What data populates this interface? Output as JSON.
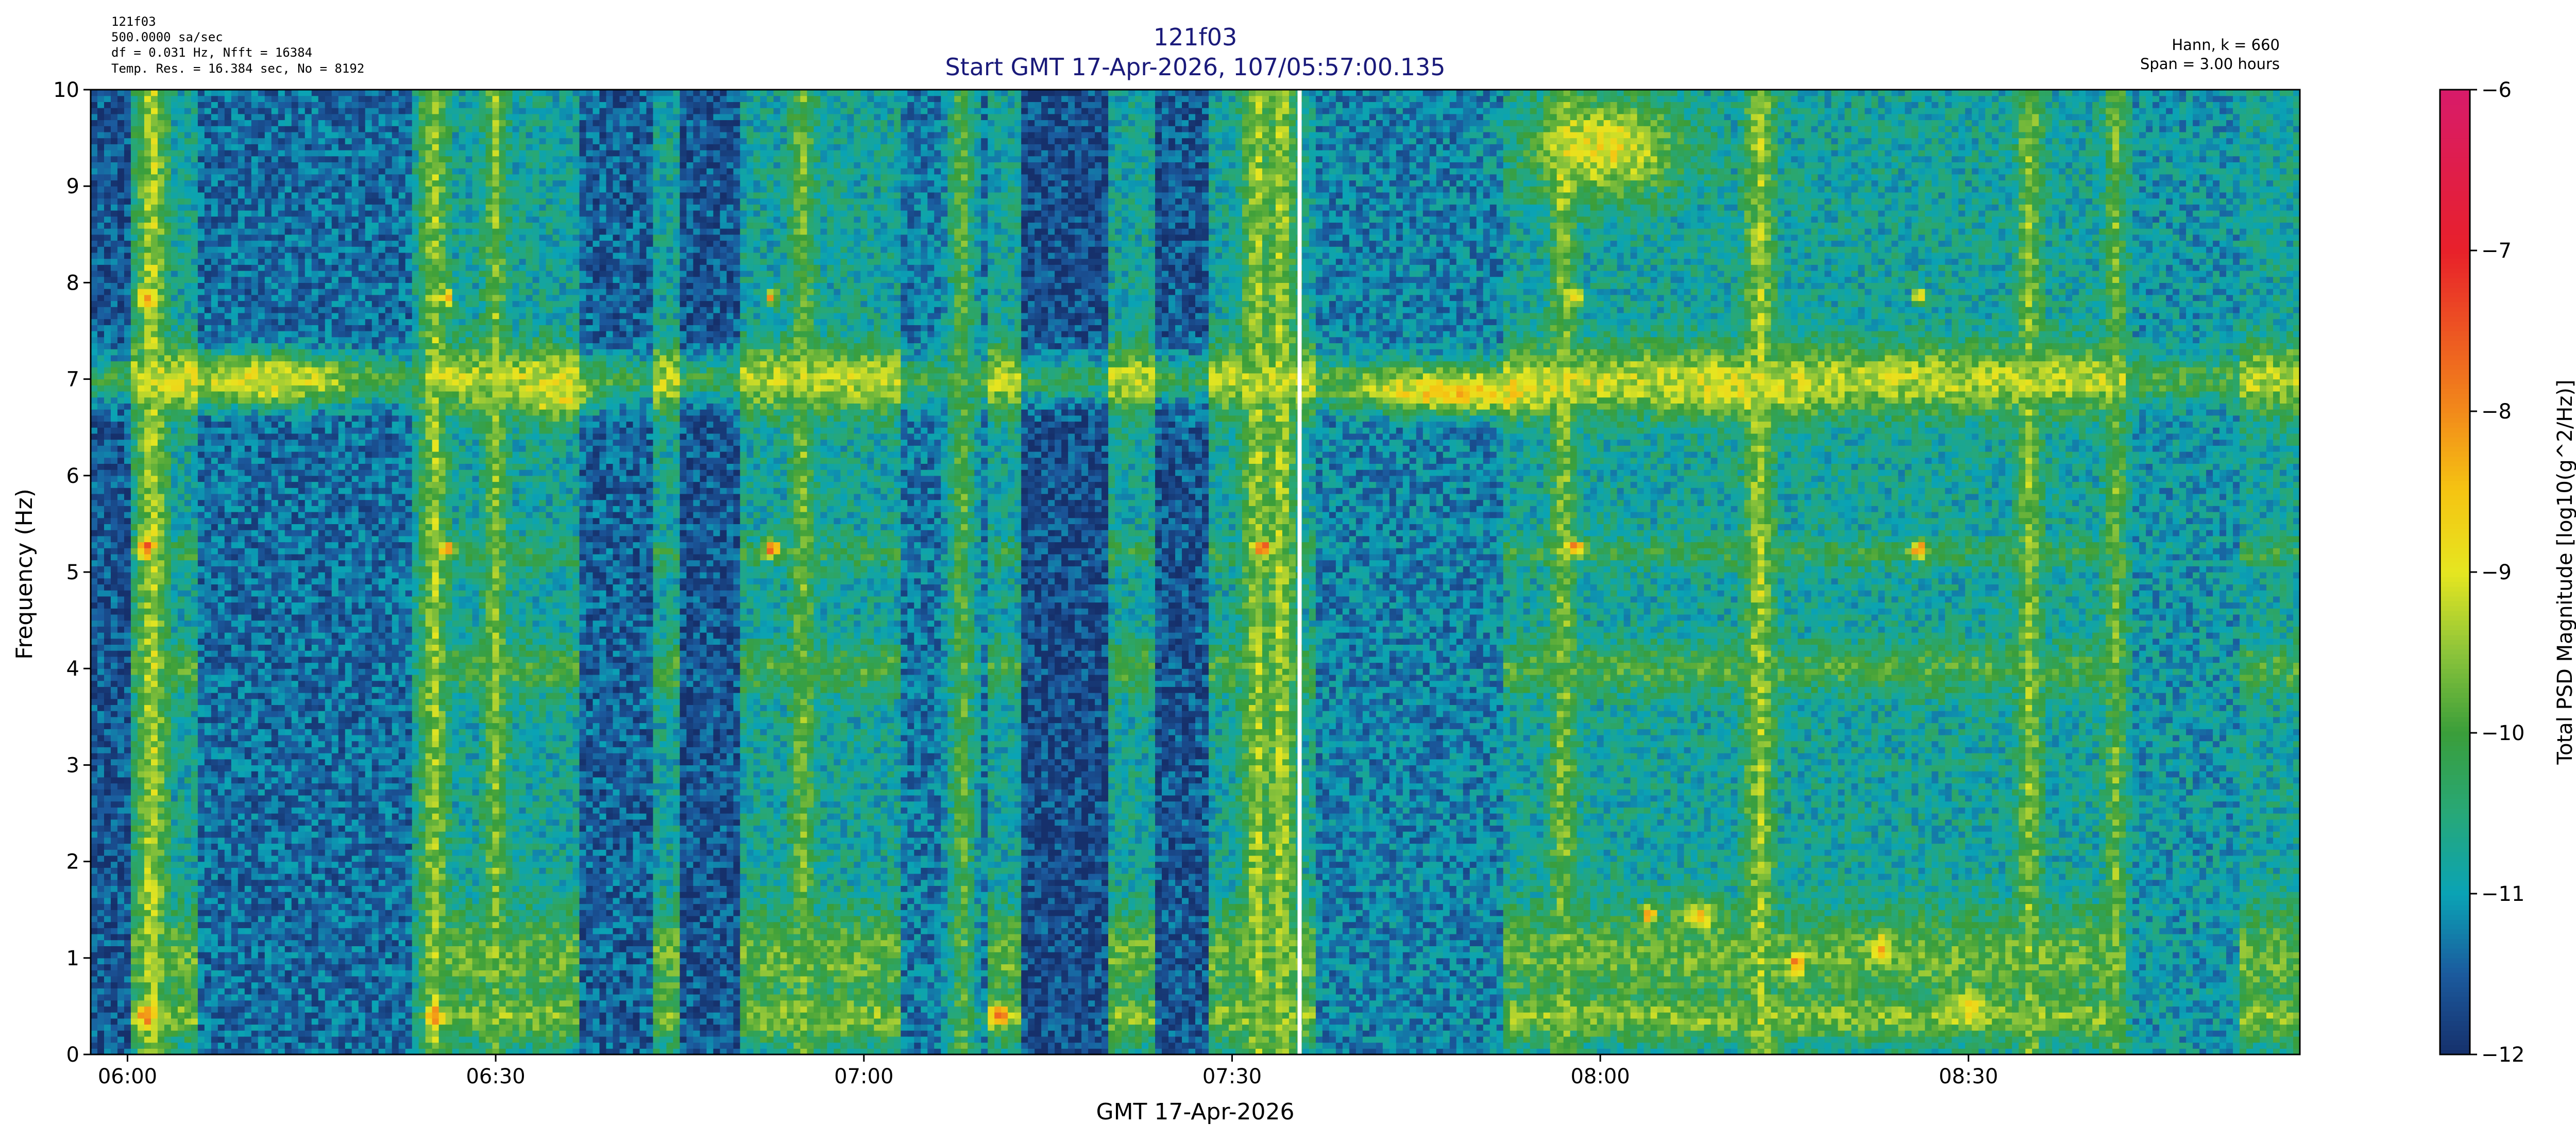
{
  "header": {
    "info_left": [
      "121f03",
      "500.0000 sa/sec",
      "df = 0.031 Hz,  Nfft = 16384",
      "Temp. Res. = 16.384 sec, No = 8192"
    ],
    "title_line1": "121f03",
    "title_line2": "Start GMT 17-Apr-2026, 107/05:57:00.135",
    "info_right": [
      "Hann, k = 660",
      "Span = 3.00 hours"
    ]
  },
  "colors": {
    "title": "#1a1a7a",
    "gap_line": "#ffffff"
  },
  "chart_data": {
    "type": "heatmap",
    "xlabel": "GMT 17-Apr-2026",
    "ylabel": "Frequency (Hz)",
    "colorbar_label": "Total PSD Magnitude [log10(g^2/Hz)]",
    "x_range_minutes": [
      -3,
      177
    ],
    "x_tick_minutes": [
      0,
      30,
      60,
      90,
      120,
      150
    ],
    "x_tick_labels": [
      "06:00",
      "06:30",
      "07:00",
      "07:30",
      "08:00",
      "08:30"
    ],
    "ylim": [
      0,
      10
    ],
    "y_ticks": [
      0,
      1,
      2,
      3,
      4,
      5,
      6,
      7,
      8,
      9,
      10
    ],
    "y_tick_labels": [
      "0",
      "1",
      "2",
      "3",
      "4",
      "5",
      "6",
      "7",
      "8",
      "9",
      "10"
    ],
    "clim": [
      -12,
      -6
    ],
    "colorbar_ticks": [
      -12,
      -11,
      -10,
      -9,
      -8,
      -7,
      -6
    ],
    "colorbar_tick_labels": [
      "−12",
      "−11",
      "−10",
      "−9",
      "−8",
      "−7",
      "−6"
    ],
    "colormap": [
      [
        -12.0,
        "#16306b"
      ],
      [
        -11.5,
        "#1b5a9e"
      ],
      [
        -11.0,
        "#0aa3b5"
      ],
      [
        -10.5,
        "#27a878"
      ],
      [
        -10.0,
        "#3a9e3a"
      ],
      [
        -9.5,
        "#8cc43a"
      ],
      [
        -9.0,
        "#e6e620"
      ],
      [
        -8.5,
        "#f5c512"
      ],
      [
        -8.0,
        "#f28a1a"
      ],
      [
        -7.0,
        "#e8202a"
      ],
      [
        -6.0,
        "#d81b6a"
      ]
    ],
    "data_gap_minute": 95.5,
    "base_level": -10.8,
    "bands": [
      {
        "f": 7.0,
        "width": 0.35,
        "level": -9.3
      },
      {
        "f": 4.0,
        "width": 0.25,
        "level": -10.0
      },
      {
        "f": 5.2,
        "width": 0.15,
        "level": -10.2
      },
      {
        "f": 1.0,
        "width": 0.5,
        "level": -9.8
      },
      {
        "f": 0.4,
        "width": 0.25,
        "level": -9.6
      }
    ],
    "quiet_intervals": [
      {
        "t": [
          -3,
          0.5
        ],
        "level": -11.6
      },
      {
        "t": [
          6,
          24
        ],
        "level": -11.4
      },
      {
        "t": [
          37,
          43
        ],
        "level": -11.5
      },
      {
        "t": [
          45,
          50
        ],
        "level": -11.6
      },
      {
        "t": [
          63,
          70
        ],
        "level": -11.3
      },
      {
        "t": [
          73,
          80
        ],
        "level": -11.7
      },
      {
        "t": [
          84,
          88
        ],
        "level": -11.6
      },
      {
        "t": [
          97,
          112
        ],
        "level": -11.2
      },
      {
        "t": [
          163,
          172
        ],
        "level": -11.0
      }
    ],
    "hot_spots": [
      {
        "t": 120.5,
        "f": 9.4,
        "dt": 6,
        "df": 0.5,
        "level": -8.9
      },
      {
        "t": 11,
        "f": 7.0,
        "dt": 7,
        "df": 0.25,
        "level": -8.9
      },
      {
        "t": 108,
        "f": 6.85,
        "dt": 8,
        "df": 0.2,
        "level": -8.6
      },
      {
        "t": 131,
        "f": 6.85,
        "dt": 6,
        "df": 0.2,
        "level": -9.1
      },
      {
        "t": 35,
        "f": 6.85,
        "dt": 3,
        "df": 0.25,
        "level": -9.0
      },
      {
        "t": 1.5,
        "f": 5.25,
        "dt": 0.6,
        "df": 0.08,
        "level": -7.3
      },
      {
        "t": 26,
        "f": 5.25,
        "dt": 0.5,
        "df": 0.08,
        "level": -8.0
      },
      {
        "t": 52.5,
        "f": 5.25,
        "dt": 0.6,
        "df": 0.08,
        "level": -7.3
      },
      {
        "t": 92.5,
        "f": 5.25,
        "dt": 0.6,
        "df": 0.08,
        "level": -7.3
      },
      {
        "t": 118,
        "f": 5.25,
        "dt": 0.6,
        "df": 0.08,
        "level": -7.8
      },
      {
        "t": 146,
        "f": 5.25,
        "dt": 0.6,
        "df": 0.08,
        "level": -7.5
      },
      {
        "t": 1.5,
        "f": 7.85,
        "dt": 0.6,
        "df": 0.08,
        "level": -7.9
      },
      {
        "t": 26,
        "f": 7.85,
        "dt": 0.5,
        "df": 0.08,
        "level": -8.3
      },
      {
        "t": 52.5,
        "f": 7.85,
        "dt": 0.5,
        "df": 0.08,
        "level": -8.3
      },
      {
        "t": 118,
        "f": 7.85,
        "dt": 0.5,
        "df": 0.08,
        "level": -8.3
      },
      {
        "t": 146,
        "f": 7.85,
        "dt": 0.5,
        "df": 0.08,
        "level": -8.3
      },
      {
        "t": 1.5,
        "f": 0.4,
        "dt": 0.6,
        "df": 0.1,
        "level": -7.8
      },
      {
        "t": 25,
        "f": 0.4,
        "dt": 0.6,
        "df": 0.1,
        "level": -7.8
      },
      {
        "t": 71,
        "f": 0.4,
        "dt": 1.0,
        "df": 0.1,
        "level": -8.0
      },
      {
        "t": 124,
        "f": 1.45,
        "dt": 0.6,
        "df": 0.1,
        "level": -8.0
      },
      {
        "t": 136,
        "f": 0.95,
        "dt": 0.6,
        "df": 0.12,
        "level": -8.0
      },
      {
        "t": 143,
        "f": 1.1,
        "dt": 0.8,
        "df": 0.15,
        "level": -8.5
      },
      {
        "t": 128,
        "f": 1.45,
        "dt": 1.5,
        "df": 0.15,
        "level": -8.6
      },
      {
        "t": 150,
        "f": 0.5,
        "dt": 1.5,
        "df": 0.15,
        "level": -8.6
      }
    ],
    "vertical_streaks": [
      {
        "t": 2,
        "level": -9.2
      },
      {
        "t": 25,
        "level": -9.4
      },
      {
        "t": 30,
        "level": -9.6
      },
      {
        "t": 55,
        "level": -9.6
      },
      {
        "t": 68,
        "level": -9.8
      },
      {
        "t": 92,
        "level": -9.3
      },
      {
        "t": 94,
        "level": -9.3
      },
      {
        "t": 117,
        "level": -9.5
      },
      {
        "t": 133,
        "level": -9.3
      },
      {
        "t": 155,
        "level": -9.5
      },
      {
        "t": 162,
        "level": -9.7
      }
    ]
  }
}
